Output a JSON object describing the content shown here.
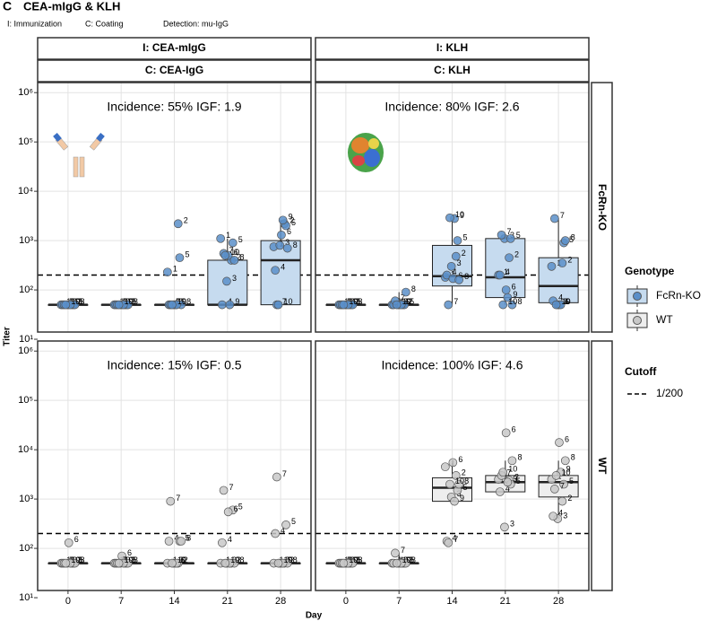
{
  "panel_letter": "C",
  "title": "CEA-mIgG & KLH",
  "subtitle": [
    "I: Immunization",
    "C: Coating",
    "Detection: mu-IgG"
  ],
  "chart_data": {
    "type": "box",
    "x_label": "Day",
    "y_label": "Titer",
    "log_y": true,
    "grid": true,
    "ylim": [
      14,
      1600000
    ],
    "yticks": [
      {
        "value": 10,
        "label": "10¹"
      },
      {
        "value": 100,
        "label": "10²"
      },
      {
        "value": 1000,
        "label": "10³"
      },
      {
        "value": 10000,
        "label": "10⁴"
      },
      {
        "value": 100000,
        "label": "10⁵"
      },
      {
        "value": 1000000,
        "label": "10⁶"
      }
    ],
    "xlim": [
      -4,
      32
    ],
    "xticks": [
      0,
      7,
      14,
      21,
      28
    ],
    "columns": [
      {
        "immunization": "I: CEA-mIgG",
        "coating": "C: CEA-IgG"
      },
      {
        "immunization": "I: KLH",
        "coating": "C: KLH"
      }
    ],
    "ids": [
      1,
      2,
      3,
      4,
      5,
      6,
      7,
      8,
      9,
      10
    ],
    "legend_title": "Genotype",
    "cutoff": {
      "title": "Cutoff",
      "name": "1/200",
      "value": 200
    },
    "series": [
      {
        "name": "FcRn-KO",
        "color": "#5b8fc9",
        "box_color": "#c6dbef",
        "panels": [
          {
            "annotation": "Incidence: 55% IGF: 1.9",
            "points": [
              [
                50,
                50,
                50,
                50,
                50,
                50,
                50,
                50,
                50,
                50
              ],
              [
                50,
                50,
                50,
                50,
                50,
                50,
                50,
                50,
                50,
                50
              ],
              [
                230,
                2200,
                50,
                50,
                450,
                50,
                50,
                50,
                50,
                50
              ],
              [
                1100,
                400,
                150,
                50,
                900,
                500,
                550,
                400,
                50,
                500
              ],
              [
                750,
                2200,
                800,
                250,
                2000,
                1300,
                50,
                700,
                2600,
                50
              ]
            ],
            "boxes": [
              [
                50,
                50,
                50,
                50,
                50
              ],
              [
                50,
                50,
                50,
                50,
                50
              ],
              [
                50,
                50,
                50,
                50,
                50
              ],
              [
                50,
                50,
                50,
                400,
                1100
              ],
              [
                50,
                50,
                400,
                1000,
                2600
              ]
            ]
          },
          {
            "annotation": "Incidence: 80% IGF: 2.6",
            "points": [
              [
                50,
                50,
                50,
                50,
                50,
                50,
                50,
                50,
                50,
                50
              ],
              [
                50,
                50,
                50,
                50,
                50,
                50,
                60,
                90,
                50,
                50
              ],
              [
                180,
                480,
                300,
                200,
                1000,
                170,
                50,
                160,
                2800,
                2900
              ],
              [
                200,
                450,
                1100,
                200,
                1100,
                100,
                1300,
                50,
                70,
                50
              ],
              [
                300,
                350,
                50,
                60,
                900,
                50,
                2800,
                1000,
                50,
                50
              ]
            ],
            "boxes": [
              [
                50,
                50,
                50,
                50,
                50
              ],
              [
                50,
                50,
                50,
                50,
                90
              ],
              [
                50,
                120,
                190,
                800,
                2900
              ],
              [
                50,
                70,
                180,
                1100,
                1300
              ],
              [
                50,
                55,
                120,
                450,
                2800
              ]
            ]
          }
        ]
      },
      {
        "name": "WT",
        "color": "#c8c8c8",
        "box_color": "#eeeeee",
        "panels": [
          {
            "annotation": "Incidence: 15% IGF: 0.5",
            "points": [
              [
                50,
                50,
                50,
                50,
                50,
                130,
                50,
                50,
                50,
                50
              ],
              [
                50,
                50,
                50,
                50,
                50,
                70,
                50,
                50,
                50,
                50
              ],
              [
                50,
                50,
                50,
                140,
                140,
                50,
                900,
                140,
                50,
                50
              ],
              [
                50,
                50,
                50,
                130,
                600,
                550,
                1500,
                50,
                50,
                50
              ],
              [
                50,
                50,
                50,
                200,
                300,
                50,
                2800,
                50,
                50,
                50
              ]
            ],
            "boxes": [
              [
                50,
                50,
                50,
                50,
                50
              ],
              [
                50,
                50,
                50,
                50,
                50
              ],
              [
                50,
                50,
                50,
                50,
                50
              ],
              [
                50,
                50,
                50,
                50,
                50
              ],
              [
                50,
                50,
                50,
                50,
                50
              ]
            ]
          },
          {
            "annotation": "Incidence: 100% IGF: 4.6",
            "points": [
              [
                50,
                50,
                50,
                50,
                50,
                50,
                50,
                50,
                50,
                50
              ],
              [
                50,
                50,
                50,
                50,
                50,
                50,
                80,
                50,
                50,
                50
              ],
              [
                4500,
                3000,
                1100,
                140,
                1500,
                5500,
                130,
                2000,
                900,
                2000
              ],
              [
                2500,
                2400,
                270,
                1400,
                2000,
                22000,
                3000,
                6000,
                2200,
                3500
              ],
              [
                2500,
                900,
                400,
                450,
                2000,
                14000,
                1600,
                6000,
                3500,
                3000
              ]
            ],
            "boxes": [
              [
                50,
                50,
                50,
                50,
                50
              ],
              [
                50,
                50,
                50,
                50,
                80
              ],
              [
                900,
                900,
                1700,
                2700,
                5500
              ],
              [
                1400,
                1400,
                2200,
                3000,
                6000
              ],
              [
                400,
                1100,
                2200,
                3000,
                6000
              ]
            ]
          }
        ]
      }
    ]
  }
}
